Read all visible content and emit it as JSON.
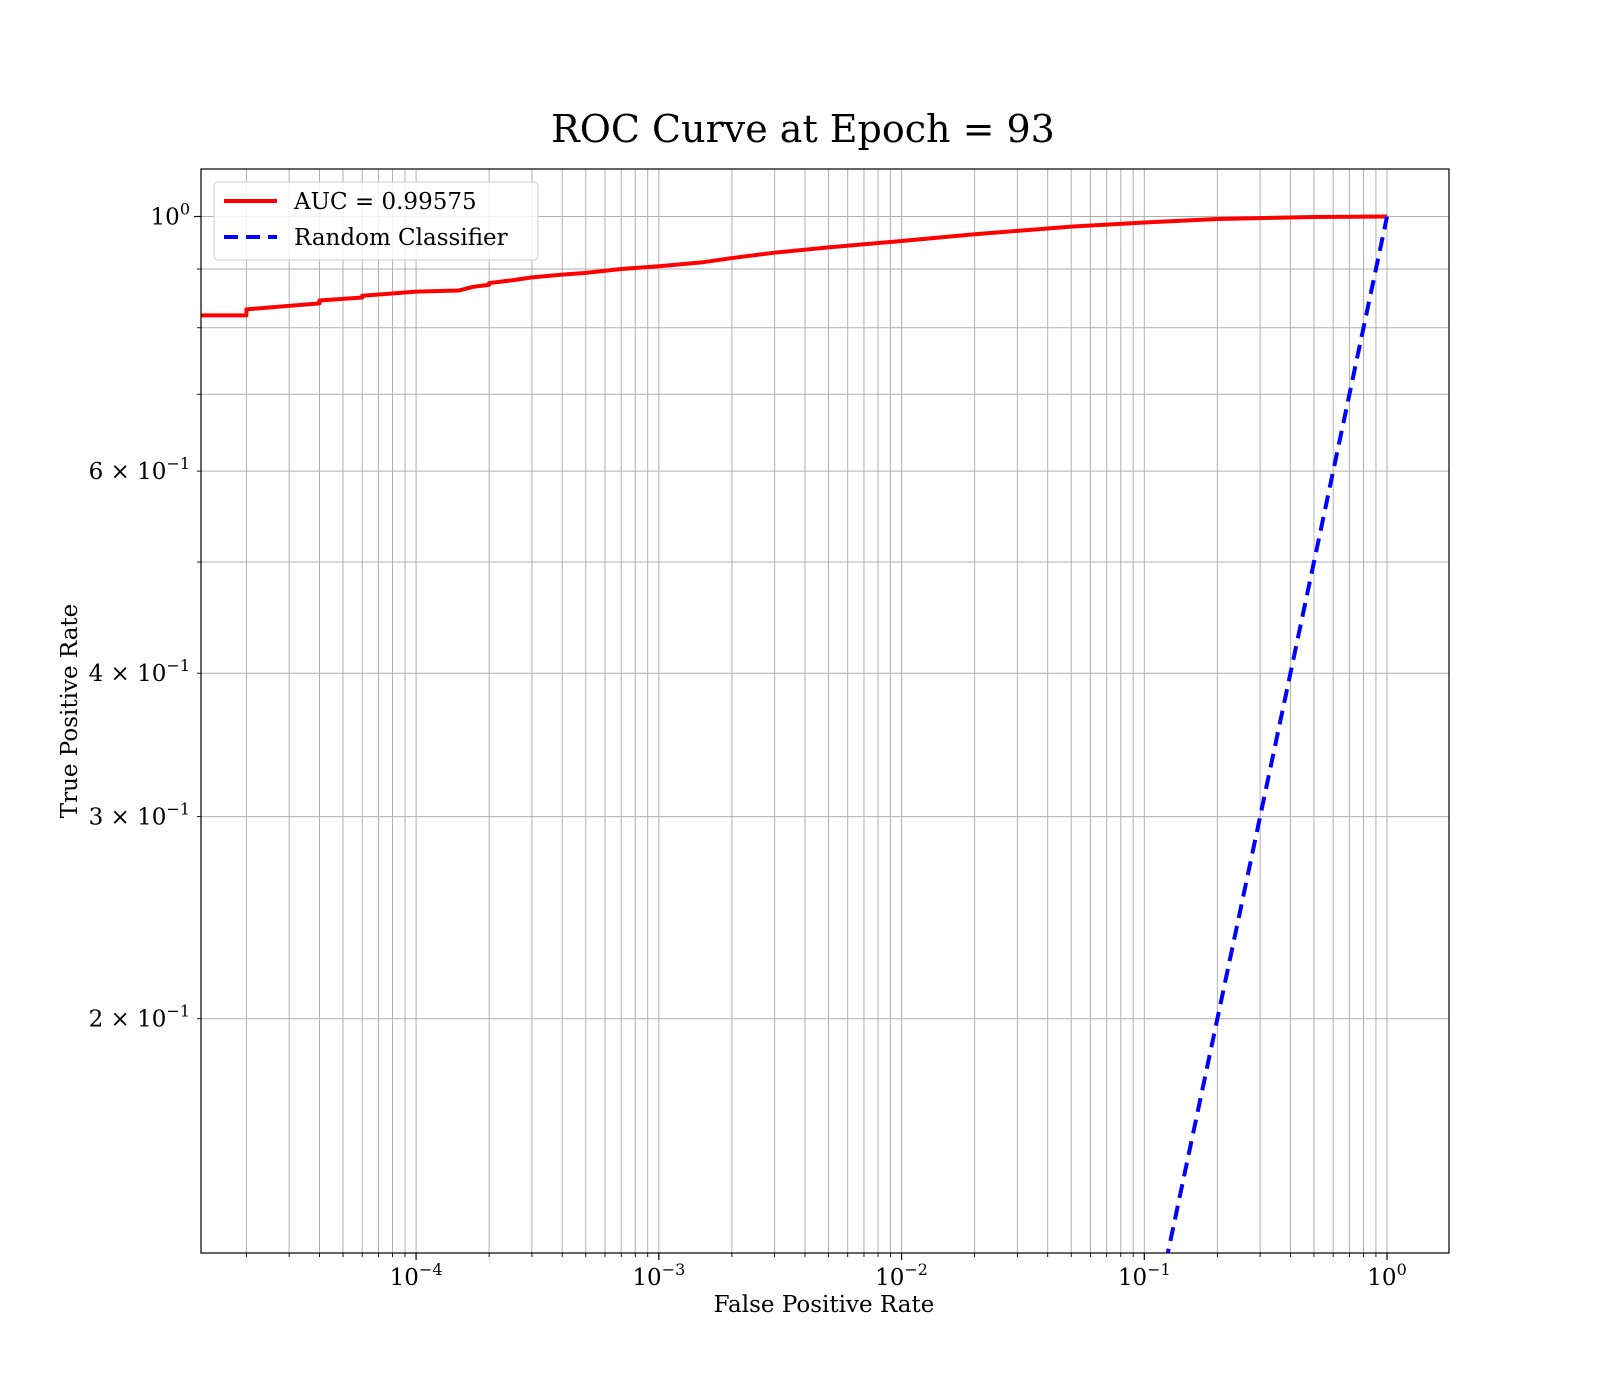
{
  "chart_data": {
    "type": "line",
    "title": "ROC Curve at Epoch = 93",
    "xlabel": "False Positive Rate",
    "ylabel": "True Positive Rate",
    "xscale": "log",
    "yscale": "log",
    "xlim": [
      1.3e-05,
      1.8
    ],
    "ylim": [
      0.125,
      1.1
    ],
    "grid": "major and minor",
    "legend_position": "top-left",
    "x_ticks": [
      {
        "value": 0.0001,
        "base": "10",
        "exp": "−4"
      },
      {
        "value": 0.001,
        "base": "10",
        "exp": "−3"
      },
      {
        "value": 0.01,
        "base": "10",
        "exp": "−2"
      },
      {
        "value": 0.1,
        "base": "10",
        "exp": "−1"
      },
      {
        "value": 1,
        "base": "10",
        "exp": "0"
      }
    ],
    "y_ticks": [
      {
        "value": 1,
        "base": "10",
        "exp": "0"
      },
      {
        "value": 0.6,
        "base": "6 × 10",
        "exp": "−1"
      },
      {
        "value": 0.4,
        "base": "4 × 10",
        "exp": "−1"
      },
      {
        "value": 0.3,
        "base": "3 × 10",
        "exp": "−1"
      },
      {
        "value": 0.2,
        "base": "2 × 10",
        "exp": "−1"
      }
    ],
    "series": [
      {
        "name": "AUC = 0.99575",
        "color": "#ff0000",
        "style": "solid",
        "x": [
          1.3e-05,
          2e-05,
          2e-05,
          4e-05,
          4e-05,
          6e-05,
          6e-05,
          0.0001,
          0.00015,
          0.00017,
          0.0002,
          0.0002,
          0.00025,
          0.0003,
          0.0004,
          0.0005,
          0.0007,
          0.001,
          0.0015,
          0.002,
          0.003,
          0.005,
          0.01,
          0.02,
          0.05,
          0.1,
          0.2,
          0.5,
          1.0
        ],
        "y": [
          0.82,
          0.82,
          0.83,
          0.84,
          0.845,
          0.85,
          0.853,
          0.86,
          0.862,
          0.868,
          0.872,
          0.875,
          0.88,
          0.885,
          0.89,
          0.893,
          0.9,
          0.905,
          0.912,
          0.92,
          0.93,
          0.94,
          0.952,
          0.965,
          0.98,
          0.988,
          0.995,
          0.999,
          1.0
        ]
      },
      {
        "name": "Random Classifier",
        "color": "#0000ff",
        "style": "dashed",
        "x": [
          0.115,
          1.0
        ],
        "y": [
          0.115,
          1.0
        ]
      }
    ]
  }
}
